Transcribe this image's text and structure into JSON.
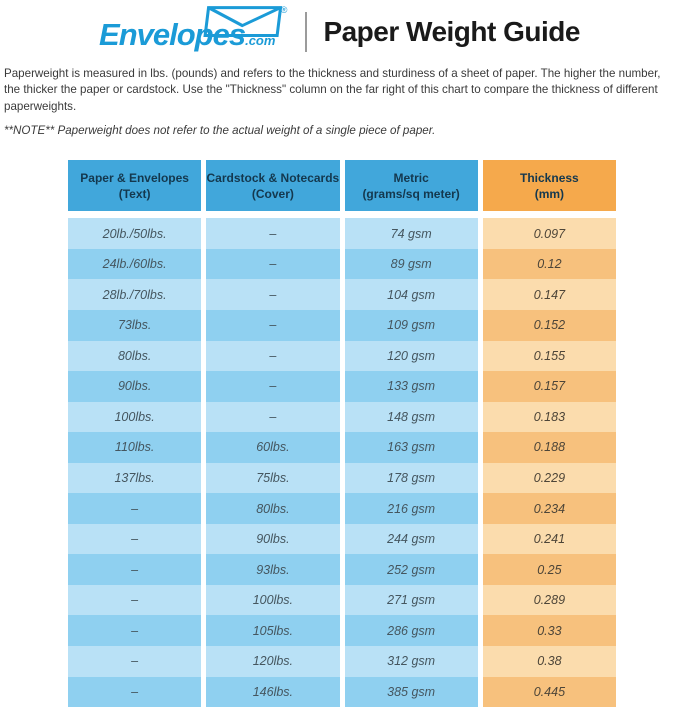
{
  "brand": {
    "logo_text": "Envelopes",
    "logo_suffix": ".com",
    "registered_mark": "®"
  },
  "header": {
    "title": "Paper Weight Guide"
  },
  "intro": {
    "paragraph": "Paperweight is measured in lbs. (pounds) and refers to the thickness and sturdiness of a sheet of paper. The higher the number, the thicker the paper or cardstock. Use the \"Thickness\" column on the far right of this chart to compare the thickness of different paperweights.",
    "note": "**NOTE** Paperweight does not refer to the actual weight of a single piece of paper."
  },
  "table": {
    "columns": [
      {
        "key": "text",
        "label": "Paper & Envelopes",
        "sublabel": "(Text)"
      },
      {
        "key": "cover",
        "label": "Cardstock & Notecards",
        "sublabel": "(Cover)"
      },
      {
        "key": "metric",
        "label": "Metric",
        "sublabel": "(grams/sq meter)"
      },
      {
        "key": "thickness",
        "label": "Thickness",
        "sublabel": "(mm)"
      }
    ]
  },
  "chart_data": {
    "type": "table",
    "title": "Paper Weight Guide",
    "columns": [
      "Paper & Envelopes (Text)",
      "Cardstock & Notecards (Cover)",
      "Metric (grams/sq meter)",
      "Thickness (mm)"
    ],
    "rows": [
      [
        "20lb./50lbs.",
        "–",
        "74 gsm",
        "0.097"
      ],
      [
        "24lb./60lbs.",
        "–",
        "89 gsm",
        "0.12"
      ],
      [
        "28lb./70lbs.",
        "–",
        "104 gsm",
        "0.147"
      ],
      [
        "73lbs.",
        "–",
        "109 gsm",
        "0.152"
      ],
      [
        "80lbs.",
        "–",
        "120 gsm",
        "0.155"
      ],
      [
        "90lbs.",
        "–",
        "133 gsm",
        "0.157"
      ],
      [
        "100lbs.",
        "–",
        "148 gsm",
        "0.183"
      ],
      [
        "110lbs.",
        "60lbs.",
        "163 gsm",
        "0.188"
      ],
      [
        "137lbs.",
        "75lbs.",
        "178 gsm",
        "0.229"
      ],
      [
        "–",
        "80lbs.",
        "216 gsm",
        "0.234"
      ],
      [
        "–",
        "90lbs.",
        "244 gsm",
        "0.241"
      ],
      [
        "–",
        "93lbs.",
        "252 gsm",
        "0.25"
      ],
      [
        "–",
        "100lbs.",
        "271 gsm",
        "0.289"
      ],
      [
        "–",
        "105lbs.",
        "286 gsm",
        "0.33"
      ],
      [
        "–",
        "120lbs.",
        "312 gsm",
        "0.38"
      ],
      [
        "–",
        "146lbs.",
        "385 gsm",
        "0.445"
      ]
    ]
  },
  "colors": {
    "logo_blue": "#1B9BD7",
    "header_blue": "#41A7DB",
    "header_orange": "#F5A94C",
    "row_blue_light": "#B9E1F6",
    "row_blue_dark": "#8FD0F0",
    "row_orange_light": "#FBDCAD",
    "row_orange_dark": "#F7C17D"
  }
}
